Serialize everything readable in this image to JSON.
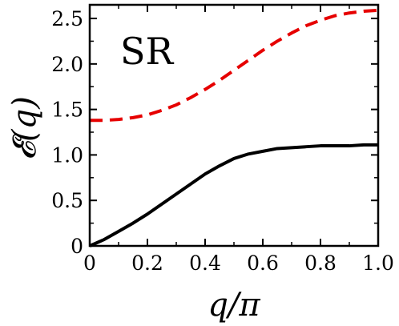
{
  "chart_data": {
    "type": "line",
    "title": "",
    "annotation": "SR",
    "xlabel": "q/π",
    "ylabel": "𝓔(q)",
    "xlim": [
      0,
      1.0
    ],
    "ylim": [
      0,
      2.65
    ],
    "x_ticks": [
      0,
      0.2,
      0.4,
      0.6,
      0.8,
      1.0
    ],
    "x_tick_labels": [
      "0",
      "0.2",
      "0.4",
      "0.6",
      "0.8",
      "1.0"
    ],
    "y_ticks": [
      0,
      0.5,
      1.0,
      1.5,
      2.0,
      2.5
    ],
    "y_tick_labels": [
      "0",
      "0.5",
      "1.0",
      "1.5",
      "2.0",
      "2.5"
    ],
    "grid": false,
    "legend": "none",
    "series": [
      {
        "style": "solid",
        "color": "#000000",
        "x": [
          0,
          0.05,
          0.1,
          0.15,
          0.2,
          0.25,
          0.3,
          0.35,
          0.4,
          0.45,
          0.5,
          0.55,
          0.6,
          0.65,
          0.7,
          0.75,
          0.8,
          0.85,
          0.9,
          0.95,
          1.0
        ],
        "y": [
          0,
          0.07,
          0.16,
          0.25,
          0.35,
          0.46,
          0.57,
          0.68,
          0.79,
          0.88,
          0.96,
          1.01,
          1.04,
          1.07,
          1.08,
          1.09,
          1.1,
          1.1,
          1.1,
          1.11,
          1.11
        ]
      },
      {
        "style": "dashed",
        "color": "#e60000",
        "x": [
          0,
          0.05,
          0.1,
          0.15,
          0.2,
          0.25,
          0.3,
          0.35,
          0.4,
          0.45,
          0.5,
          0.55,
          0.6,
          0.65,
          0.7,
          0.75,
          0.8,
          0.85,
          0.9,
          0.95,
          1.0
        ],
        "y": [
          1.38,
          1.38,
          1.39,
          1.41,
          1.44,
          1.49,
          1.55,
          1.63,
          1.72,
          1.82,
          1.93,
          2.04,
          2.15,
          2.25,
          2.34,
          2.42,
          2.48,
          2.53,
          2.56,
          2.58,
          2.59
        ]
      }
    ]
  }
}
